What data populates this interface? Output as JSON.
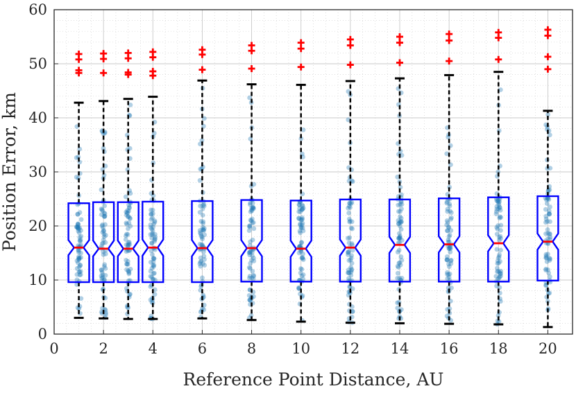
{
  "chart_data": {
    "type": "box",
    "xlabel": "Reference Point Distance, AU",
    "ylabel": "Position Error, km",
    "xlim": [
      0,
      21
    ],
    "ylim": [
      0,
      60
    ],
    "xticks": [
      0,
      2,
      4,
      6,
      8,
      10,
      12,
      14,
      16,
      18,
      20
    ],
    "yticks": [
      0,
      10,
      20,
      30,
      40,
      50,
      60
    ],
    "grid": true,
    "minor_grid": true,
    "box_half_width": 0.42,
    "colors": {
      "box": "#0000ff",
      "median": "#ff0000",
      "whisker": "#000000",
      "outlier": "#ff0000",
      "points": "#1f77b4",
      "grid": "#c8c8c8"
    },
    "boxes": [
      {
        "x": 1,
        "whisker_low": 3.0,
        "q1": 9.6,
        "median": 16.0,
        "q3": 24.2,
        "whisker_high": 42.8,
        "notch_low": 14.6,
        "notch_high": 17.4,
        "outliers": [
          48.3,
          48.8,
          50.8,
          51.8
        ]
      },
      {
        "x": 2,
        "whisker_low": 2.9,
        "q1": 9.6,
        "median": 15.8,
        "q3": 24.4,
        "whisker_high": 43.1,
        "notch_low": 14.4,
        "notch_high": 17.3,
        "outliers": [
          48.3,
          50.9,
          51.9
        ]
      },
      {
        "x": 3,
        "whisker_low": 2.8,
        "q1": 9.6,
        "median": 15.8,
        "q3": 24.4,
        "whisker_high": 43.5,
        "notch_low": 14.4,
        "notch_high": 17.3,
        "outliers": [
          48.0,
          48.4,
          51.0,
          52.0
        ]
      },
      {
        "x": 4,
        "whisker_low": 2.8,
        "q1": 9.6,
        "median": 16.0,
        "q3": 24.5,
        "whisker_high": 43.9,
        "notch_low": 14.5,
        "notch_high": 17.5,
        "outliers": [
          47.8,
          48.6,
          51.2,
          52.2
        ]
      },
      {
        "x": 6,
        "whisker_low": 2.9,
        "q1": 9.6,
        "median": 15.9,
        "q3": 24.6,
        "whisker_high": 46.9,
        "notch_low": 14.4,
        "notch_high": 17.4,
        "outliers": [
          48.9,
          51.7,
          52.6
        ]
      },
      {
        "x": 8,
        "whisker_low": 2.6,
        "q1": 9.7,
        "median": 15.9,
        "q3": 24.8,
        "whisker_high": 46.2,
        "notch_low": 14.4,
        "notch_high": 17.4,
        "outliers": [
          49.1,
          52.4,
          53.4
        ]
      },
      {
        "x": 10,
        "whisker_low": 2.3,
        "q1": 9.7,
        "median": 15.8,
        "q3": 24.7,
        "whisker_high": 46.1,
        "notch_low": 14.3,
        "notch_high": 17.3,
        "outliers": [
          49.4,
          52.8,
          53.9
        ]
      },
      {
        "x": 12,
        "whisker_low": 2.1,
        "q1": 9.7,
        "median": 16.0,
        "q3": 24.9,
        "whisker_high": 46.8,
        "notch_low": 14.5,
        "notch_high": 17.5,
        "outliers": [
          49.8,
          53.4,
          54.5
        ]
      },
      {
        "x": 14,
        "whisker_low": 2.0,
        "q1": 9.7,
        "median": 16.5,
        "q3": 24.9,
        "whisker_high": 47.3,
        "notch_low": 15.0,
        "notch_high": 18.0,
        "outliers": [
          50.2,
          53.9,
          55.0
        ]
      },
      {
        "x": 16,
        "whisker_low": 1.9,
        "q1": 9.7,
        "median": 16.6,
        "q3": 25.1,
        "whisker_high": 47.9,
        "notch_low": 15.1,
        "notch_high": 18.1,
        "outliers": [
          50.5,
          54.3,
          55.5
        ]
      },
      {
        "x": 18,
        "whisker_low": 1.8,
        "q1": 9.7,
        "median": 16.8,
        "q3": 25.3,
        "whisker_high": 48.5,
        "notch_low": 15.3,
        "notch_high": 18.3,
        "outliers": [
          50.8,
          54.8,
          55.8
        ]
      },
      {
        "x": 20,
        "whisker_low": 1.3,
        "q1": 9.9,
        "median": 17.1,
        "q3": 25.5,
        "whisker_high": 41.3,
        "notch_low": 15.6,
        "notch_high": 18.6,
        "outliers": [
          49.0,
          51.3,
          55.2,
          56.3
        ]
      }
    ]
  }
}
